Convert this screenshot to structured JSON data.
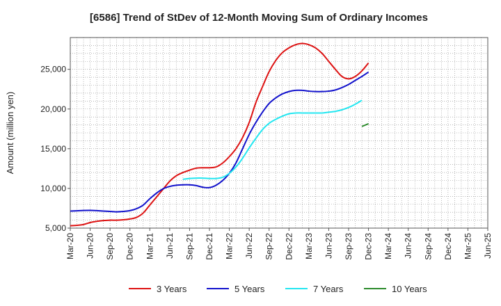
{
  "chart_data": {
    "type": "line",
    "title": "[6586]  Trend of StDev of 12-Month Moving Sum of Ordinary Incomes",
    "xlabel": "",
    "ylabel": "Amount (million yen)",
    "ylim": [
      5000,
      29000
    ],
    "y_ticks": [
      5000,
      10000,
      15000,
      20000,
      25000
    ],
    "y_tick_labels": [
      "5,000",
      "10,000",
      "15,000",
      "20,000",
      "25,000"
    ],
    "x_ticks": [
      "Mar-20",
      "Jun-20",
      "Sep-20",
      "Dec-20",
      "Mar-21",
      "Jun-21",
      "Sep-21",
      "Dec-21",
      "Mar-22",
      "Jun-22",
      "Sep-22",
      "Dec-22",
      "Mar-23",
      "Jun-23",
      "Sep-23",
      "Dec-23",
      "Mar-24",
      "Jun-24",
      "Sep-24",
      "Dec-24",
      "Mar-25",
      "Jun-25"
    ],
    "grid": true,
    "legend_position": "bottom",
    "series": [
      {
        "name": "3 Years",
        "color": "#dd1111",
        "start_index": 0,
        "values": [
          5300,
          5350,
          5450,
          5700,
          5850,
          5950,
          6000,
          6000,
          6050,
          6150,
          6350,
          6900,
          7900,
          8900,
          9900,
          10900,
          11600,
          12000,
          12300,
          12550,
          12600,
          12600,
          12700,
          13200,
          14000,
          15000,
          16400,
          18300,
          20800,
          22800,
          24700,
          26100,
          27100,
          27700,
          28100,
          28250,
          28100,
          27700,
          27000,
          26000,
          25000,
          24100,
          23800,
          24100,
          24800,
          25800
        ]
      },
      {
        "name": "5 Years",
        "color": "#1111cc",
        "start_index": 0,
        "values": [
          7150,
          7180,
          7220,
          7230,
          7200,
          7150,
          7100,
          7050,
          7100,
          7200,
          7450,
          7900,
          8700,
          9400,
          9950,
          10250,
          10400,
          10450,
          10450,
          10350,
          10150,
          10100,
          10400,
          11000,
          11900,
          13200,
          15000,
          16800,
          18300,
          19600,
          20700,
          21400,
          21900,
          22200,
          22350,
          22350,
          22250,
          22200,
          22200,
          22250,
          22400,
          22700,
          23100,
          23600,
          24100,
          24650
        ]
      },
      {
        "name": "7 Years",
        "color": "#22e6f0",
        "start_index": 17,
        "values": [
          11150,
          11250,
          11300,
          11300,
          11250,
          11250,
          11400,
          11900,
          12700,
          13800,
          15100,
          16300,
          17400,
          18200,
          18700,
          19100,
          19400,
          19500,
          19500,
          19500,
          19500,
          19500,
          19600,
          19700,
          19900,
          20200,
          20600,
          21100
        ]
      },
      {
        "name": "10 Years",
        "color": "#2a8a2a",
        "start_index": 44,
        "values": [
          17800,
          18150
        ]
      }
    ]
  }
}
